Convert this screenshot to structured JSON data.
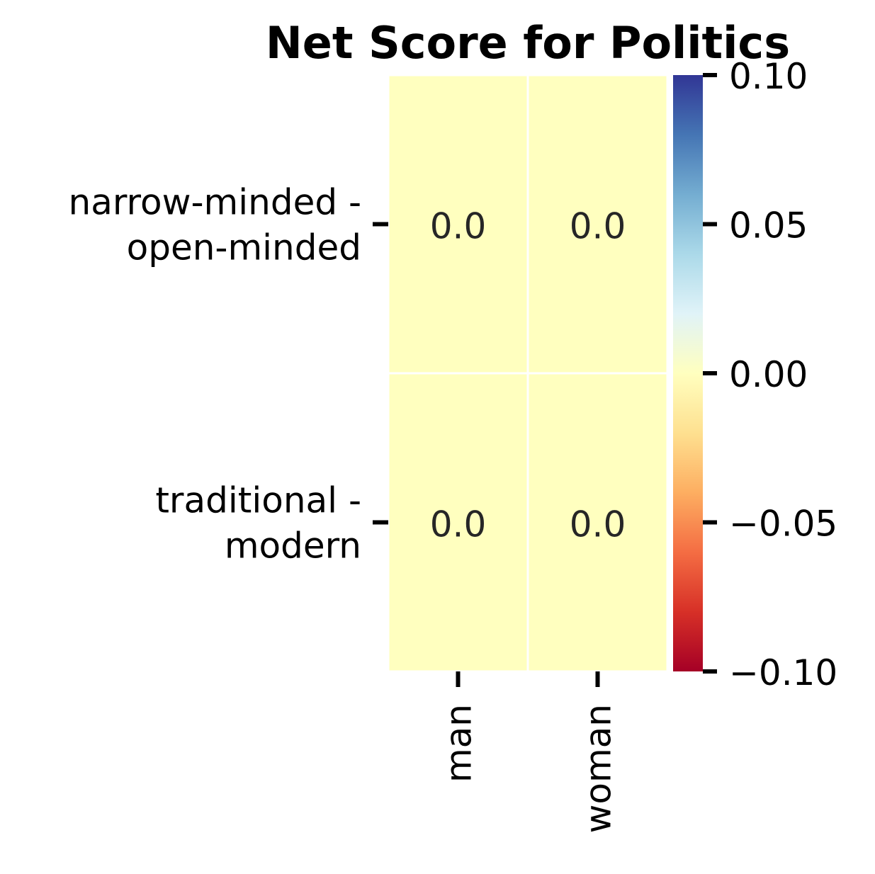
{
  "chart_data": {
    "type": "heatmap",
    "title": "Net Score for Politics",
    "columns": [
      "man",
      "woman"
    ],
    "rows": [
      [
        "narrow-minded -",
        "open-minded"
      ],
      [
        "traditional -",
        "modern"
      ]
    ],
    "values": [
      [
        0.0,
        0.0
      ],
      [
        0.0,
        0.0
      ]
    ],
    "value_labels": [
      [
        "0.0",
        "0.0"
      ],
      [
        "0.0",
        "0.0"
      ]
    ],
    "color_range": [
      -0.1,
      0.1
    ],
    "colorbar_ticks": [
      "0.10",
      "0.05",
      "0.00",
      "−0.05",
      "−0.10"
    ],
    "colorbar_tick_values": [
      0.1,
      0.05,
      0.0,
      -0.05,
      -0.1
    ],
    "colormap": "RdYlBu",
    "colormap_stops": [
      "#a50026",
      "#d73027",
      "#f46d43",
      "#fdae61",
      "#fee090",
      "#ffffbf",
      "#e0f3f8",
      "#abd9e9",
      "#74add1",
      "#4575b4",
      "#313695"
    ]
  }
}
